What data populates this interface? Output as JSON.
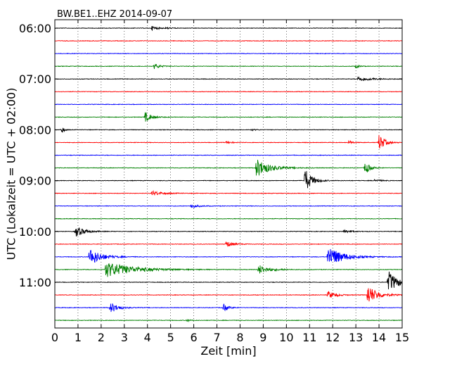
{
  "chart_data": {
    "type": "line",
    "title": "BW.BE1..EHZ 2014-09-07",
    "xlabel": "Zeit  [min]",
    "ylabel": "UTC (Lokalzeit = UTC + 02:00)",
    "xlim": [
      0,
      15
    ],
    "x_ticks": [
      "0",
      "1",
      "2",
      "3",
      "4",
      "5",
      "6",
      "7",
      "8",
      "9",
      "10",
      "11",
      "12",
      "13",
      "14",
      "15"
    ],
    "grid": "vertical dotted",
    "row_interval_min": 15,
    "row_labels": [
      {
        "row": 0,
        "label": "06:00"
      },
      {
        "row": 4,
        "label": "07:00"
      },
      {
        "row": 8,
        "label": "08:00"
      },
      {
        "row": 12,
        "label": "09:00"
      },
      {
        "row": 16,
        "label": "10:00"
      },
      {
        "row": 20,
        "label": "11:00"
      }
    ],
    "color_cycle": [
      "#000000",
      "#ff0000",
      "#0000ff",
      "#008000"
    ],
    "rows": [
      {
        "start": "06:00",
        "color": "#000000",
        "events": [
          {
            "t": 4.2,
            "a": 0.3,
            "d": 0.5
          },
          {
            "t": 4.8,
            "a": 0.15,
            "d": 0.4
          }
        ]
      },
      {
        "start": "06:15",
        "color": "#ff0000",
        "events": []
      },
      {
        "start": "06:30",
        "color": "#0000ff",
        "events": []
      },
      {
        "start": "06:45",
        "color": "#008000",
        "events": [
          {
            "t": 4.3,
            "a": 0.35,
            "d": 0.5
          },
          {
            "t": 13.0,
            "a": 0.25,
            "d": 0.3
          }
        ]
      },
      {
        "start": "07:00",
        "color": "#000000",
        "events": [
          {
            "t": 13.1,
            "a": 0.3,
            "d": 1.2
          }
        ]
      },
      {
        "start": "07:15",
        "color": "#ff0000",
        "events": []
      },
      {
        "start": "07:30",
        "color": "#0000ff",
        "events": []
      },
      {
        "start": "07:45",
        "color": "#008000",
        "events": [
          {
            "t": 3.9,
            "a": 0.6,
            "d": 0.6
          }
        ]
      },
      {
        "start": "08:00",
        "color": "#000000",
        "events": [
          {
            "t": 0.3,
            "a": 0.5,
            "d": 0.2
          },
          {
            "t": 8.5,
            "a": 0.1,
            "d": 0.4
          }
        ]
      },
      {
        "start": "08:15",
        "color": "#ff0000",
        "events": [
          {
            "t": 7.4,
            "a": 0.15,
            "d": 0.5
          },
          {
            "t": 12.7,
            "a": 0.3,
            "d": 0.3
          },
          {
            "t": 14.0,
            "a": 1.1,
            "d": 0.5
          }
        ]
      },
      {
        "start": "08:30",
        "color": "#0000ff",
        "events": []
      },
      {
        "start": "08:45",
        "color": "#008000",
        "events": [
          {
            "t": 8.7,
            "a": 1.2,
            "d": 1.2
          },
          {
            "t": 13.4,
            "a": 0.9,
            "d": 0.4
          }
        ]
      },
      {
        "start": "09:00",
        "color": "#000000",
        "events": [
          {
            "t": 10.8,
            "a": 1.6,
            "d": 0.6
          },
          {
            "t": 13.8,
            "a": 0.15,
            "d": 0.6
          }
        ]
      },
      {
        "start": "09:15",
        "color": "#ff0000",
        "events": [
          {
            "t": 4.2,
            "a": 0.3,
            "d": 1.0
          }
        ]
      },
      {
        "start": "09:30",
        "color": "#0000ff",
        "events": [
          {
            "t": 5.9,
            "a": 0.3,
            "d": 0.6
          }
        ]
      },
      {
        "start": "09:45",
        "color": "#008000",
        "events": []
      },
      {
        "start": "10:00",
        "color": "#000000",
        "events": [
          {
            "t": 0.9,
            "a": 0.7,
            "d": 0.8
          },
          {
            "t": 12.5,
            "a": 0.25,
            "d": 0.6
          }
        ]
      },
      {
        "start": "10:15",
        "color": "#ff0000",
        "events": [
          {
            "t": 7.4,
            "a": 0.4,
            "d": 0.6
          }
        ]
      },
      {
        "start": "10:30",
        "color": "#0000ff",
        "events": [
          {
            "t": 1.5,
            "a": 1.2,
            "d": 1.0
          },
          {
            "t": 11.8,
            "a": 1.4,
            "d": 1.3
          }
        ]
      },
      {
        "start": "10:45",
        "color": "#008000",
        "events": [
          {
            "t": 2.2,
            "a": 1.0,
            "d": 2.5
          },
          {
            "t": 8.8,
            "a": 0.6,
            "d": 1.0
          }
        ]
      },
      {
        "start": "11:00",
        "color": "#000000",
        "events": [
          {
            "t": 14.4,
            "a": 1.5,
            "d": 0.8
          }
        ]
      },
      {
        "start": "11:15",
        "color": "#ff0000",
        "events": [
          {
            "t": 11.8,
            "a": 0.5,
            "d": 0.7
          },
          {
            "t": 13.5,
            "a": 1.3,
            "d": 0.9
          }
        ]
      },
      {
        "start": "11:30",
        "color": "#0000ff",
        "events": [
          {
            "t": 2.4,
            "a": 0.7,
            "d": 0.7
          },
          {
            "t": 7.3,
            "a": 0.5,
            "d": 0.4
          }
        ]
      },
      {
        "start": "11:45",
        "color": "#008000",
        "events": [
          {
            "t": 5.7,
            "a": 0.15,
            "d": 0.3
          }
        ]
      }
    ]
  }
}
